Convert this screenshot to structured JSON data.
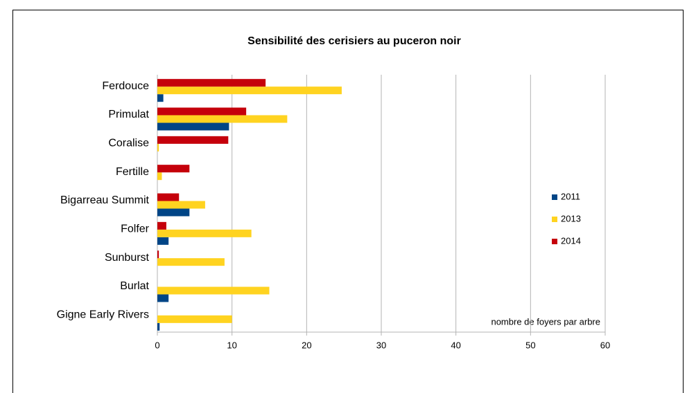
{
  "chart_data": {
    "type": "barh",
    "title": "Sensibilité des cerisiers au puceron noir",
    "annotation": "nombre de foyers par arbre",
    "categories": [
      "Ferdouce",
      "Primulat",
      "Coralise",
      "Fertille",
      "Bigarreau Summit",
      "Folfer",
      "Sunburst",
      "Burlat",
      "Gigne Early Rivers"
    ],
    "series": [
      {
        "name": "2011",
        "color": "#004586",
        "values": [
          0.8,
          9.6,
          0,
          0,
          4.3,
          1.5,
          0,
          1.5,
          0.3
        ]
      },
      {
        "name": "2013",
        "color": "#ffd320",
        "values": [
          24.7,
          17.4,
          0.2,
          0.6,
          6.4,
          12.6,
          9.0,
          15.0,
          10.0
        ]
      },
      {
        "name": "2014",
        "color": "#c5000b",
        "values": [
          14.5,
          11.9,
          9.5,
          4.3,
          2.9,
          1.2,
          0.2,
          0,
          0
        ]
      }
    ],
    "xlim": [
      0,
      60
    ],
    "xticks": [
      0,
      10,
      20,
      30,
      40,
      50,
      60
    ],
    "grid": true,
    "legend": "right"
  }
}
